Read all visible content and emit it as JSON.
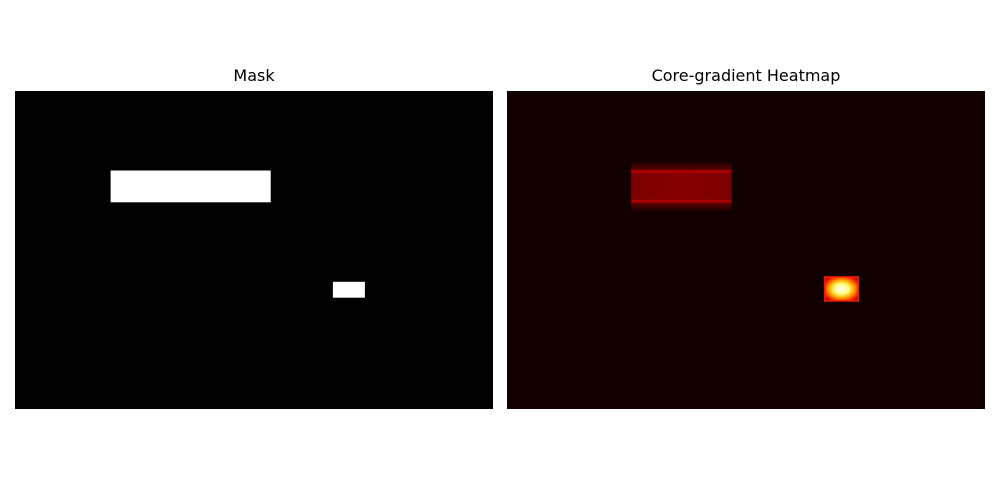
{
  "panels": {
    "left_title": "Mask",
    "right_title": "Core-gradient Heatmap"
  },
  "chart_data": [
    {
      "type": "heatmap",
      "title": "Mask",
      "colormap": "gray",
      "background_value": 0,
      "axes_visible": false,
      "rects": [
        {
          "name": "mask-rect-1",
          "x0": 0.2,
          "x1": 0.535,
          "y0": 0.25,
          "y1": 0.35,
          "value": 1
        },
        {
          "name": "mask-rect-2",
          "x0": 0.665,
          "x1": 0.732,
          "y0": 0.6,
          "y1": 0.65,
          "value": 1
        }
      ]
    },
    {
      "type": "heatmap",
      "title": "Core-gradient Heatmap",
      "colormap": "hot",
      "background_color": "#120000",
      "axes_visible": false,
      "blobs": [
        {
          "name": "heat-region-1",
          "x0": 0.26,
          "x1": 0.47,
          "y0": 0.22,
          "y1": 0.38,
          "intensity": 0.55,
          "edge_color": "#a80000"
        },
        {
          "name": "heat-region-2",
          "x0": 0.665,
          "x1": 0.735,
          "y0": 0.585,
          "y1": 0.66,
          "intensity": 1.0,
          "edge_color": "#ff2000"
        }
      ]
    }
  ]
}
